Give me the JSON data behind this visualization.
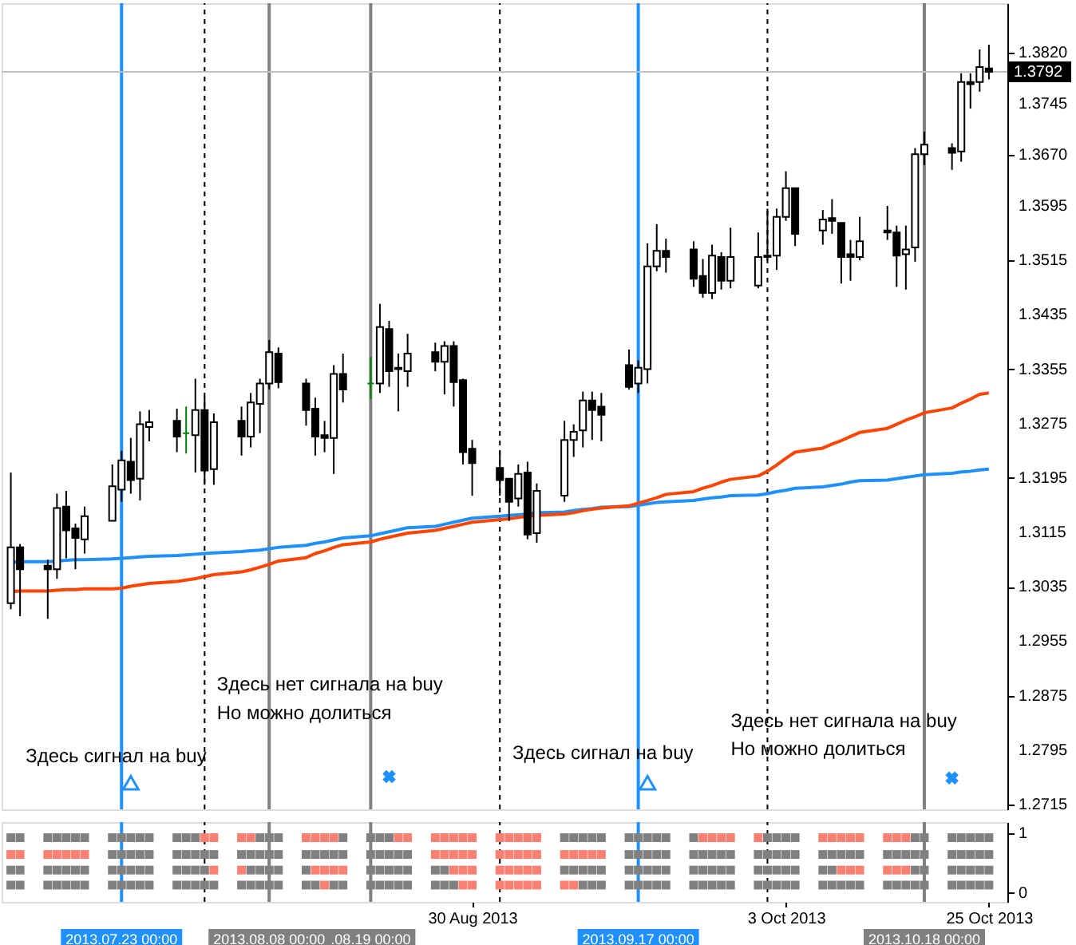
{
  "chart_data": [
    {
      "type": "candlestick",
      "x": [
        "2013-07-11",
        "2013-07-12",
        "2013-07-15",
        "2013-07-16",
        "2013-07-17",
        "2013-07-18",
        "2013-07-19",
        "2013-07-22",
        "2013-07-23",
        "2013-07-24",
        "2013-07-25",
        "2013-07-26",
        "2013-07-29",
        "2013-07-30",
        "2013-07-31",
        "2013-08-01",
        "2013-08-02",
        "2013-08-05",
        "2013-08-06",
        "2013-08-07",
        "2013-08-08",
        "2013-08-09",
        "2013-08-12",
        "2013-08-13",
        "2013-08-14",
        "2013-08-15",
        "2013-08-16",
        "2013-08-19",
        "2013-08-20",
        "2013-08-21",
        "2013-08-22",
        "2013-08-23",
        "2013-08-26",
        "2013-08-27",
        "2013-08-28",
        "2013-08-29",
        "2013-08-30",
        "2013-09-02",
        "2013-09-03",
        "2013-09-04",
        "2013-09-05",
        "2013-09-06",
        "2013-09-09",
        "2013-09-10",
        "2013-09-11",
        "2013-09-12",
        "2013-09-13",
        "2013-09-16",
        "2013-09-17",
        "2013-09-18",
        "2013-09-19",
        "2013-09-20",
        "2013-09-23",
        "2013-09-24",
        "2013-09-25",
        "2013-09-26",
        "2013-09-27",
        "2013-09-30",
        "2013-10-01",
        "2013-10-02",
        "2013-10-03",
        "2013-10-04",
        "2013-10-07",
        "2013-10-08",
        "2013-10-09",
        "2013-10-10",
        "2013-10-11",
        "2013-10-14",
        "2013-10-15",
        "2013-10-16",
        "2013-10-17",
        "2013-10-18",
        "2013-10-21",
        "2013-10-22",
        "2013-10-23",
        "2013-10-24",
        "2013-10-25"
      ],
      "ohlc": [
        [
          1.3011,
          1.3203,
          1.3002,
          1.3093
        ],
        [
          1.3093,
          1.3098,
          1.2992,
          1.3061
        ],
        [
          1.3066,
          1.3075,
          1.2988,
          1.3061
        ],
        [
          1.3061,
          1.3172,
          1.3047,
          1.3151
        ],
        [
          1.3153,
          1.3176,
          1.3077,
          1.3118
        ],
        [
          1.3121,
          1.3128,
          1.3061,
          1.3107
        ],
        [
          1.3105,
          1.3153,
          1.3084,
          1.3139
        ],
        [
          1.3132,
          1.3215,
          1.3132,
          1.3183
        ],
        [
          1.3178,
          1.3235,
          1.316,
          1.3221
        ],
        [
          1.3219,
          1.3254,
          1.3172,
          1.3192
        ],
        [
          1.3194,
          1.3293,
          1.3162,
          1.3274
        ],
        [
          1.327,
          1.3295,
          1.3249,
          1.3277
        ],
        [
          1.3279,
          1.3297,
          1.3233,
          1.3256
        ],
        [
          1.3261,
          1.33,
          1.3231,
          1.3261
        ],
        [
          1.3258,
          1.3341,
          1.3203,
          1.3295
        ],
        [
          1.3295,
          1.3315,
          1.3185,
          1.3206
        ],
        [
          1.3208,
          1.329,
          1.3185,
          1.3277
        ],
        [
          1.3279,
          1.33,
          1.3228,
          1.3256
        ],
        [
          1.3256,
          1.332,
          1.324,
          1.3306
        ],
        [
          1.3304,
          1.3341,
          1.3261,
          1.3334
        ],
        [
          1.3334,
          1.3398,
          1.3325,
          1.338
        ],
        [
          1.3378,
          1.3387,
          1.3327,
          1.3336
        ],
        [
          1.3334,
          1.3341,
          1.3272,
          1.3295
        ],
        [
          1.3297,
          1.3313,
          1.3228,
          1.3256
        ],
        [
          1.3258,
          1.3279,
          1.3233,
          1.3254
        ],
        [
          1.3254,
          1.3361,
          1.3201,
          1.3348
        ],
        [
          1.3348,
          1.3378,
          1.3306,
          1.3325
        ],
        [
          1.3334,
          1.3373,
          1.3311,
          1.3334
        ],
        [
          1.3334,
          1.3451,
          1.332,
          1.3417
        ],
        [
          1.3414,
          1.3426,
          1.3329,
          1.3352
        ],
        [
          1.3357,
          1.3378,
          1.3293,
          1.3355
        ],
        [
          1.3352,
          1.3407,
          1.3329,
          1.3378
        ],
        [
          1.338,
          1.3394,
          1.3352,
          1.3366
        ],
        [
          1.3366,
          1.3396,
          1.3318,
          1.3389
        ],
        [
          1.3389,
          1.3396,
          1.33,
          1.3336
        ],
        [
          1.3339,
          1.3341,
          1.3215,
          1.3233
        ],
        [
          1.3238,
          1.3251,
          1.3169,
          1.3217
        ],
        [
          1.321,
          1.3235,
          1.3169,
          1.3192
        ],
        [
          1.3194,
          1.3194,
          1.3132,
          1.316
        ],
        [
          1.3165,
          1.3215,
          1.3153,
          1.3201
        ],
        [
          1.3203,
          1.3219,
          1.3105,
          1.3112
        ],
        [
          1.3114,
          1.3187,
          1.31,
          1.3176
        ],
        [
          1.3169,
          1.3279,
          1.316,
          1.3251
        ],
        [
          1.3251,
          1.3274,
          1.3226,
          1.3263
        ],
        [
          1.3265,
          1.3322,
          1.324,
          1.3309
        ],
        [
          1.3309,
          1.3322,
          1.3251,
          1.3295
        ],
        [
          1.33,
          1.332,
          1.3249,
          1.3288
        ],
        [
          1.3361,
          1.3384,
          1.3325,
          1.3329
        ],
        [
          1.3334,
          1.3368,
          1.332,
          1.3357
        ],
        [
          1.3355,
          1.354,
          1.3334,
          1.3506
        ],
        [
          1.3506,
          1.3568,
          1.3499,
          1.3529
        ],
        [
          1.3529,
          1.3547,
          1.3497,
          1.352
        ],
        [
          1.3531,
          1.3543,
          1.3476,
          1.3488
        ],
        [
          1.3492,
          1.3517,
          1.346,
          1.3467
        ],
        [
          1.3467,
          1.3538,
          1.3458,
          1.3522
        ],
        [
          1.352,
          1.3527,
          1.3472,
          1.3485
        ],
        [
          1.3485,
          1.3563,
          1.3474,
          1.352
        ],
        [
          1.3478,
          1.3556,
          1.3474,
          1.352
        ],
        [
          1.3522,
          1.3591,
          1.3515,
          1.352
        ],
        [
          1.3522,
          1.3591,
          1.3501,
          1.3579
        ],
        [
          1.3579,
          1.3646,
          1.3573,
          1.3621
        ],
        [
          1.3621,
          1.3621,
          1.3536,
          1.3554
        ],
        [
          1.3559,
          1.3589,
          1.3538,
          1.3575
        ],
        [
          1.3577,
          1.3605,
          1.3554,
          1.3573
        ],
        [
          1.357,
          1.357,
          1.3481,
          1.352
        ],
        [
          1.3524,
          1.3545,
          1.3485,
          1.352
        ],
        [
          1.352,
          1.3579,
          1.3515,
          1.3543
        ],
        [
          1.3559,
          1.3595,
          1.3545,
          1.3556
        ],
        [
          1.3556,
          1.3566,
          1.3476,
          1.3522
        ],
        [
          1.3524,
          1.3566,
          1.3472,
          1.3531
        ],
        [
          1.3534,
          1.368,
          1.3513,
          1.3671
        ],
        [
          1.3671,
          1.3704,
          1.3655,
          1.3685
        ],
        [
          1.368,
          1.3687,
          1.3648,
          1.3673
        ],
        [
          1.3675,
          1.379,
          1.366,
          1.3777
        ],
        [
          1.3777,
          1.379,
          1.3738,
          1.3774
        ],
        [
          1.3777,
          1.3825,
          1.3763,
          1.3799
        ],
        [
          1.3797,
          1.3832,
          1.3781,
          1.3792
        ]
      ],
      "colors": [
        "#000000",
        "#000000",
        "#000000",
        "#000000",
        "#000000",
        "#000000",
        "#000000",
        "#000000",
        "#000000",
        "#000000",
        "#000000",
        "#000000",
        "#000000",
        "#008000",
        "#000000",
        "#000000",
        "#000000",
        "#000000",
        "#000000",
        "#000000",
        "#000000",
        "#000000",
        "#000000",
        "#000000",
        "#000000",
        "#000000",
        "#000000",
        "#008000",
        "#000000",
        "#000000",
        "#000000",
        "#000000",
        "#000000",
        "#000000",
        "#000000",
        "#000000",
        "#000000",
        "#000000",
        "#000000",
        "#000000",
        "#000000",
        "#000000",
        "#000000",
        "#000000",
        "#000000",
        "#000000",
        "#000000",
        "#000000",
        "#000000",
        "#000000",
        "#000000",
        "#000000",
        "#000000",
        "#000000",
        "#000000",
        "#000000",
        "#000000",
        "#000000",
        "#000000",
        "#000000",
        "#000000",
        "#000000",
        "#000000",
        "#000000",
        "#000000",
        "#000000",
        "#000000",
        "#000000",
        "#000000",
        "#000000",
        "#000000",
        "#000000",
        "#000000",
        "#000000",
        "#000000",
        "#000000",
        "#000000"
      ],
      "xlim": [
        "2013-07-10",
        "2013-10-27"
      ],
      "ylim": [
        1.2708,
        1.3893
      ],
      "yticks": [
        {
          "value": 1.382,
          "label": "1.3820"
        },
        1.3745,
        {
          "value": 1.367,
          "label": "1.3670"
        },
        1.3595,
        1.3515,
        1.3435,
        1.3355,
        1.3275,
        1.3195,
        1.3115,
        1.3035,
        1.2955,
        1.2875,
        1.2795,
        1.2715
      ],
      "tick_labels": "y",
      "series": [
        {
          "type": "line",
          "color": "#1e90ff",
          "values": [
            1.3071,
            1.3072,
            1.3072,
            1.3073,
            1.3074,
            1.3075,
            1.3075,
            1.3076,
            1.3077,
            1.3078,
            1.3079,
            1.308,
            1.3081,
            1.3082,
            1.3083,
            1.3084,
            1.3085,
            1.3087,
            1.3088,
            1.3089,
            1.3091,
            1.3093,
            1.3096,
            1.3099,
            1.3101,
            1.3104,
            1.3107,
            1.311,
            1.3113,
            1.3116,
            1.3119,
            1.3122,
            1.3124,
            1.3127,
            1.313,
            1.3133,
            1.3136,
            1.3139,
            1.314,
            1.3141,
            1.3142,
            1.3144,
            1.3145,
            1.3147,
            1.3149,
            1.315,
            1.3152,
            1.3153,
            1.3155,
            1.3157,
            1.3159,
            1.316,
            1.3162,
            1.3164,
            1.3166,
            1.3167,
            1.3169,
            1.317,
            1.3172,
            1.3175,
            1.3177,
            1.318,
            1.3182,
            1.3184,
            1.3186,
            1.3189,
            1.3191,
            1.3192,
            1.3194,
            1.3196,
            1.3198,
            1.32,
            1.3202,
            1.3204,
            1.3205,
            1.3207,
            1.3208
          ]
        },
        {
          "type": "line",
          "color": "#ff4500",
          "values": [
            1.3028,
            1.3029,
            1.3029,
            1.303,
            1.3031,
            1.3031,
            1.3032,
            1.3032,
            1.3033,
            1.3036,
            1.3038,
            1.304,
            1.3043,
            1.3045,
            1.3047,
            1.305,
            1.3053,
            1.3057,
            1.306,
            1.3064,
            1.3068,
            1.3073,
            1.3078,
            1.3084,
            1.3088,
            1.3093,
            1.3097,
            1.3101,
            1.3105,
            1.3108,
            1.3111,
            1.3114,
            1.3118,
            1.3121,
            1.3124,
            1.3127,
            1.313,
            1.3134,
            1.3135,
            1.3137,
            1.3139,
            1.314,
            1.3142,
            1.3144,
            1.3147,
            1.3149,
            1.3151,
            1.3154,
            1.3158,
            1.3162,
            1.3166,
            1.3171,
            1.3175,
            1.318,
            1.3184,
            1.3189,
            1.3193,
            1.3198,
            1.3205,
            1.3214,
            1.3224,
            1.3233,
            1.3239,
            1.3245,
            1.325,
            1.3256,
            1.3262,
            1.3268,
            1.3274,
            1.328,
            1.3285,
            1.3291,
            1.3298,
            1.3305,
            1.3311,
            1.3318,
            1.332
          ]
        },
        {
          "type": "scatter",
          "marker": "triangle",
          "color": "#1e90ff",
          "x": [
            "2013-07-24",
            "2013-09-18"
          ],
          "values": [
            1.2747,
            1.2747
          ]
        },
        {
          "type": "scatter",
          "marker": "cross",
          "color": "#1e90ff",
          "x": [
            "2013-08-21",
            "2013-10-21"
          ],
          "values": [
            1.2756,
            1.2754
          ]
        }
      ],
      "ref_lines": [
        {
          "axis": "x",
          "value": "2013-08-01",
          "color": "#000000",
          "line_style": "dashed"
        },
        {
          "axis": "x",
          "value": "2013-09-02",
          "color": "#000000",
          "line_style": "dashed"
        },
        {
          "axis": "x",
          "value": "2013-10-01",
          "color": "#000000",
          "line_style": "dashed"
        },
        {
          "axis": "x",
          "value": "2013-07-23",
          "color": "#1e90ff"
        },
        {
          "axis": "x",
          "value": "2013-08-08",
          "color": "#808080"
        },
        {
          "axis": "x",
          "value": "2013-08-19",
          "color": "#808080"
        },
        {
          "axis": "x",
          "value": "2013-09-17",
          "color": "#1e90ff"
        },
        {
          "axis": "x",
          "value": "2013-10-18",
          "color": "#808080"
        },
        {
          "axis": "y",
          "value": 1.3792,
          "label": "1.3792",
          "color": "#c0c0c0"
        }
      ],
      "annotations": [
        "Здесь сигнал на buy",
        "Здесь нет сигнала на buy",
        "Но можно долиться",
        "Здесь сигнал на buy",
        "Здесь нет сигнала на buy",
        "Но можно долиться"
      ]
    },
    {
      "type": "scatter",
      "marker": "square",
      "x": [
        "2013-07-11",
        "2013-07-12",
        "2013-07-15",
        "2013-07-16",
        "2013-07-17",
        "2013-07-18",
        "2013-07-19",
        "2013-07-22",
        "2013-07-23",
        "2013-07-24",
        "2013-07-25",
        "2013-07-26",
        "2013-07-29",
        "2013-07-30",
        "2013-07-31",
        "2013-08-01",
        "2013-08-02",
        "2013-08-05",
        "2013-08-06",
        "2013-08-07",
        "2013-08-08",
        "2013-08-09",
        "2013-08-12",
        "2013-08-13",
        "2013-08-14",
        "2013-08-15",
        "2013-08-16",
        "2013-08-19",
        "2013-08-20",
        "2013-08-21",
        "2013-08-22",
        "2013-08-23",
        "2013-08-26",
        "2013-08-27",
        "2013-08-28",
        "2013-08-29",
        "2013-08-30",
        "2013-09-02",
        "2013-09-03",
        "2013-09-04",
        "2013-09-05",
        "2013-09-06",
        "2013-09-09",
        "2013-09-10",
        "2013-09-11",
        "2013-09-12",
        "2013-09-13",
        "2013-09-16",
        "2013-09-17",
        "2013-09-18",
        "2013-09-19",
        "2013-09-20",
        "2013-09-23",
        "2013-09-24",
        "2013-09-25",
        "2013-09-26",
        "2013-09-27",
        "2013-09-30",
        "2013-10-01",
        "2013-10-02",
        "2013-10-03",
        "2013-10-04",
        "2013-10-07",
        "2013-10-08",
        "2013-10-09",
        "2013-10-10",
        "2013-10-11",
        "2013-10-14",
        "2013-10-15",
        "2013-10-16",
        "2013-10-17",
        "2013-10-18",
        "2013-10-21",
        "2013-10-22",
        "2013-10-23",
        "2013-10-24",
        "2013-10-25"
      ],
      "xlim": [
        "2013-07-10",
        "2013-10-27"
      ],
      "xticks": [
        {
          "value": "2013-08-30",
          "label": "30 Aug 2013"
        },
        {
          "value": "2013-10-03",
          "label": "3 Oct 2013"
        },
        {
          "value": "2013-10-25",
          "label": "25 Oct 2013"
        }
      ],
      "ylim": [
        -0.15,
        1.18
      ],
      "yticks": [
        0,
        1
      ],
      "series": [
        {
          "values": [
            0.92,
            0.92,
            0.92,
            0.92,
            0.92,
            0.92,
            0.92,
            0.92,
            0.92,
            0.92,
            0.92,
            0.92,
            0.92,
            0.92,
            0.92,
            0.92,
            0.92,
            0.92,
            0.92,
            0.92,
            0.92,
            0.92,
            0.92,
            0.92,
            0.92,
            0.92,
            0.92,
            0.92,
            0.92,
            0.92,
            0.92,
            0.92,
            0.92,
            0.92,
            0.92,
            0.92,
            0.92,
            0.92,
            0.92,
            0.92,
            0.92,
            0.92,
            0.92,
            0.92,
            0.92,
            0.92,
            0.92,
            0.92,
            0.92,
            0.92,
            0.92,
            0.92,
            0.92,
            0.92,
            0.92,
            0.92,
            0.92,
            0.92,
            0.92,
            0.92,
            0.92,
            0.92,
            0.92,
            0.92,
            0.92,
            0.92,
            0.92,
            0.92,
            0.92,
            0.92,
            0.92,
            0.92,
            0.92,
            0.92,
            0.92,
            0.92,
            0.92
          ],
          "colors": [
            "#808080",
            "#808080",
            "#808080",
            "#808080",
            "#808080",
            "#808080",
            "#808080",
            "#808080",
            "#808080",
            "#808080",
            "#808080",
            "#808080",
            "#808080",
            "#808080",
            "#808080",
            "#fa8072",
            "#fa8072",
            "#fa8072",
            "#fa8072",
            "#808080",
            "#808080",
            "#808080",
            "#fa8072",
            "#fa8072",
            "#fa8072",
            "#fa8072",
            "#808080",
            "#808080",
            "#808080",
            "#808080",
            "#fa8072",
            "#fa8072",
            "#fa8072",
            "#fa8072",
            "#fa8072",
            "#fa8072",
            "#fa8072",
            "#fa8072",
            "#fa8072",
            "#fa8072",
            "#fa8072",
            "#fa8072",
            "#808080",
            "#808080",
            "#808080",
            "#808080",
            "#808080",
            "#808080",
            "#808080",
            "#808080",
            "#808080",
            "#808080",
            "#808080",
            "#fa8072",
            "#fa8072",
            "#fa8072",
            "#fa8072",
            "#fa8072",
            "#808080",
            "#808080",
            "#808080",
            "#808080",
            "#fa8072",
            "#fa8072",
            "#fa8072",
            "#fa8072",
            "#fa8072",
            "#fa8072",
            "#fa8072",
            "#fa8072",
            "#808080",
            "#808080",
            "#808080",
            "#808080",
            "#808080",
            "#808080",
            "#808080"
          ]
        },
        {
          "values": [
            0.64,
            0.64,
            0.64,
            0.64,
            0.64,
            0.64,
            0.64,
            0.64,
            0.64,
            0.64,
            0.64,
            0.64,
            0.64,
            0.64,
            0.64,
            0.64,
            0.64,
            0.64,
            0.64,
            0.64,
            0.64,
            0.64,
            0.64,
            0.64,
            0.64,
            0.64,
            0.64,
            0.64,
            0.64,
            0.64,
            0.64,
            0.64,
            0.64,
            0.64,
            0.64,
            0.64,
            0.64,
            0.64,
            0.64,
            0.64,
            0.64,
            0.64,
            0.64,
            0.64,
            0.64,
            0.64,
            0.64,
            0.64,
            0.64,
            0.64,
            0.64,
            0.64,
            0.64,
            0.64,
            0.64,
            0.64,
            0.64,
            0.64,
            0.64,
            0.64,
            0.64,
            0.64,
            0.64,
            0.64,
            0.64,
            0.64,
            0.64,
            0.64,
            0.64,
            0.64,
            0.64,
            0.64,
            0.64,
            0.64,
            0.64,
            0.64,
            0.64
          ],
          "colors": [
            "#fa8072",
            "#fa8072",
            "#fa8072",
            "#fa8072",
            "#fa8072",
            "#fa8072",
            "#fa8072",
            "#808080",
            "#808080",
            "#808080",
            "#808080",
            "#808080",
            "#808080",
            "#808080",
            "#808080",
            "#808080",
            "#808080",
            "#808080",
            "#808080",
            "#808080",
            "#808080",
            "#808080",
            "#808080",
            "#808080",
            "#808080",
            "#808080",
            "#808080",
            "#808080",
            "#808080",
            "#808080",
            "#808080",
            "#808080",
            "#fa8072",
            "#fa8072",
            "#fa8072",
            "#fa8072",
            "#fa8072",
            "#fa8072",
            "#fa8072",
            "#fa8072",
            "#fa8072",
            "#fa8072",
            "#fa8072",
            "#fa8072",
            "#fa8072",
            "#fa8072",
            "#fa8072",
            "#808080",
            "#808080",
            "#808080",
            "#808080",
            "#808080",
            "#808080",
            "#808080",
            "#808080",
            "#808080",
            "#808080",
            "#808080",
            "#808080",
            "#808080",
            "#808080",
            "#808080",
            "#808080",
            "#808080",
            "#808080",
            "#808080",
            "#808080",
            "#808080",
            "#808080",
            "#808080",
            "#808080",
            "#808080",
            "#808080",
            "#808080",
            "#808080",
            "#808080",
            "#808080"
          ]
        },
        {
          "values": [
            0.38,
            0.38,
            0.38,
            0.38,
            0.38,
            0.38,
            0.38,
            0.38,
            0.38,
            0.38,
            0.38,
            0.38,
            0.38,
            0.38,
            0.38,
            0.38,
            0.38,
            0.38,
            0.38,
            0.38,
            0.38,
            0.38,
            0.38,
            0.38,
            0.38,
            0.38,
            0.38,
            0.38,
            0.38,
            0.38,
            0.38,
            0.38,
            0.38,
            0.38,
            0.38,
            0.38,
            0.38,
            0.38,
            0.38,
            0.38,
            0.38,
            0.38,
            0.38,
            0.38,
            0.38,
            0.38,
            0.38,
            0.38,
            0.38,
            0.38,
            0.38,
            0.38,
            0.38,
            0.38,
            0.38,
            0.38,
            0.38,
            0.38,
            0.38,
            0.38,
            0.38,
            0.38,
            0.38,
            0.38,
            0.38,
            0.38,
            0.38,
            0.38,
            0.38,
            0.38,
            0.38,
            0.38,
            0.38,
            0.38,
            0.38,
            0.38,
            0.38
          ],
          "colors": [
            "#808080",
            "#808080",
            "#808080",
            "#808080",
            "#808080",
            "#808080",
            "#808080",
            "#808080",
            "#808080",
            "#808080",
            "#808080",
            "#808080",
            "#808080",
            "#808080",
            "#808080",
            "#808080",
            "#fa8072",
            "#fa8072",
            "#808080",
            "#808080",
            "#808080",
            "#808080",
            "#808080",
            "#fa8072",
            "#fa8072",
            "#fa8072",
            "#fa8072",
            "#808080",
            "#808080",
            "#808080",
            "#808080",
            "#808080",
            "#808080",
            "#808080",
            "#fa8072",
            "#fa8072",
            "#fa8072",
            "#fa8072",
            "#fa8072",
            "#fa8072",
            "#fa8072",
            "#fa8072",
            "#808080",
            "#808080",
            "#808080",
            "#808080",
            "#808080",
            "#808080",
            "#808080",
            "#808080",
            "#808080",
            "#808080",
            "#808080",
            "#808080",
            "#808080",
            "#808080",
            "#808080",
            "#808080",
            "#808080",
            "#808080",
            "#808080",
            "#808080",
            "#808080",
            "#808080",
            "#fa8072",
            "#fa8072",
            "#fa8072",
            "#fa8072",
            "#fa8072",
            "#fa8072",
            "#808080",
            "#808080",
            "#808080",
            "#808080",
            "#808080",
            "#808080",
            "#808080"
          ]
        },
        {
          "values": [
            0.13,
            0.13,
            0.13,
            0.13,
            0.13,
            0.13,
            0.13,
            0.13,
            0.13,
            0.13,
            0.13,
            0.13,
            0.13,
            0.13,
            0.13,
            0.13,
            0.13,
            0.13,
            0.13,
            0.13,
            0.13,
            0.13,
            0.13,
            0.13,
            0.13,
            0.13,
            0.13,
            0.13,
            0.13,
            0.13,
            0.13,
            0.13,
            0.13,
            0.13,
            0.13,
            0.13,
            0.13,
            0.13,
            0.13,
            0.13,
            0.13,
            0.13,
            0.13,
            0.13,
            0.13,
            0.13,
            0.13,
            0.13,
            0.13,
            0.13,
            0.13,
            0.13,
            0.13,
            0.13,
            0.13,
            0.13,
            0.13,
            0.13,
            0.13,
            0.13,
            0.13,
            0.13,
            0.13,
            0.13,
            0.13,
            0.13,
            0.13,
            0.13,
            0.13,
            0.13,
            0.13,
            0.13,
            0.13,
            0.13,
            0.13,
            0.13,
            0.13
          ],
          "colors": [
            "#808080",
            "#808080",
            "#808080",
            "#808080",
            "#808080",
            "#808080",
            "#808080",
            "#808080",
            "#808080",
            "#808080",
            "#808080",
            "#808080",
            "#808080",
            "#808080",
            "#808080",
            "#808080",
            "#808080",
            "#808080",
            "#808080",
            "#808080",
            "#808080",
            "#808080",
            "#808080",
            "#808080",
            "#fa8072",
            "#808080",
            "#808080",
            "#808080",
            "#808080",
            "#808080",
            "#808080",
            "#808080",
            "#808080",
            "#808080",
            "#808080",
            "#fa8072",
            "#fa8072",
            "#fa8072",
            "#fa8072",
            "#fa8072",
            "#fa8072",
            "#fa8072",
            "#fa8072",
            "#fa8072",
            "#808080",
            "#808080",
            "#808080",
            "#808080",
            "#808080",
            "#808080",
            "#808080",
            "#808080",
            "#808080",
            "#808080",
            "#808080",
            "#808080",
            "#808080",
            "#808080",
            "#808080",
            "#808080",
            "#808080",
            "#808080",
            "#808080",
            "#808080",
            "#808080",
            "#808080",
            "#808080",
            "#808080",
            "#808080",
            "#808080",
            "#808080",
            "#808080",
            "#808080",
            "#808080",
            "#808080",
            "#808080",
            "#808080"
          ]
        }
      ],
      "ref_lines": [
        {
          "axis": "x",
          "value": "2013-08-01",
          "color": "#000000",
          "line_style": "dashed"
        },
        {
          "axis": "x",
          "value": "2013-09-02",
          "color": "#000000",
          "line_style": "dashed"
        },
        {
          "axis": "x",
          "value": "2013-10-01",
          "color": "#000000",
          "line_style": "dashed"
        },
        {
          "axis": "x",
          "value": "2013-07-23",
          "color": "#1e90ff",
          "label": "2013.07.23 00:00"
        },
        {
          "axis": "x",
          "value": "2013-08-19",
          "color": "#808080",
          "label": ".08.19 00:00"
        },
        {
          "axis": "x",
          "value": "2013-08-08",
          "color": "#808080",
          "label": "2013.08.08 00:00"
        },
        {
          "axis": "x",
          "value": "2013-09-17",
          "color": "#1e90ff",
          "label": "2013.09.17 00:00"
        },
        {
          "axis": "x",
          "value": "2013-10-18",
          "color": "#808080",
          "label": "2013.10.18 00:00"
        }
      ]
    }
  ]
}
